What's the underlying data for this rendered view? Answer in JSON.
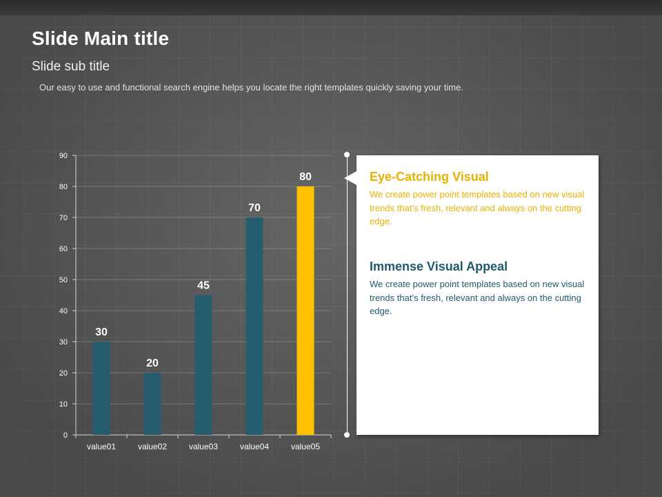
{
  "slide": {
    "title": "Slide Main title",
    "subtitle": "Slide sub title",
    "description": "Our easy to use and functional search engine helps you locate the right templates quickly saving your time."
  },
  "chart_data": {
    "type": "bar",
    "categories": [
      "value01",
      "value02",
      "value03",
      "value04",
      "value05"
    ],
    "values": [
      30,
      20,
      45,
      70,
      80
    ],
    "highlight_index": 4,
    "ylim": [
      0,
      90
    ],
    "y_ticks": [
      "0",
      "10",
      "20",
      "30",
      "40",
      "50",
      "60",
      "70",
      "80",
      "90"
    ],
    "grid": true,
    "colors": {
      "bar": "#255d6f",
      "highlight": "#ffc000"
    },
    "xlabel": "",
    "ylabel": "",
    "title": ""
  },
  "callout": {
    "items": [
      {
        "title": "Eye-Catching Visual",
        "text": "We create power point templates based on new visual trends that’s fresh, relevant and always on the cutting edge.",
        "color": "#e9b100"
      },
      {
        "title": "Immense Visual Appeal",
        "text": "We create power point templates based on new visual trends that’s fresh, relevant and always on the cutting edge.",
        "color": "#215a6d"
      }
    ]
  }
}
